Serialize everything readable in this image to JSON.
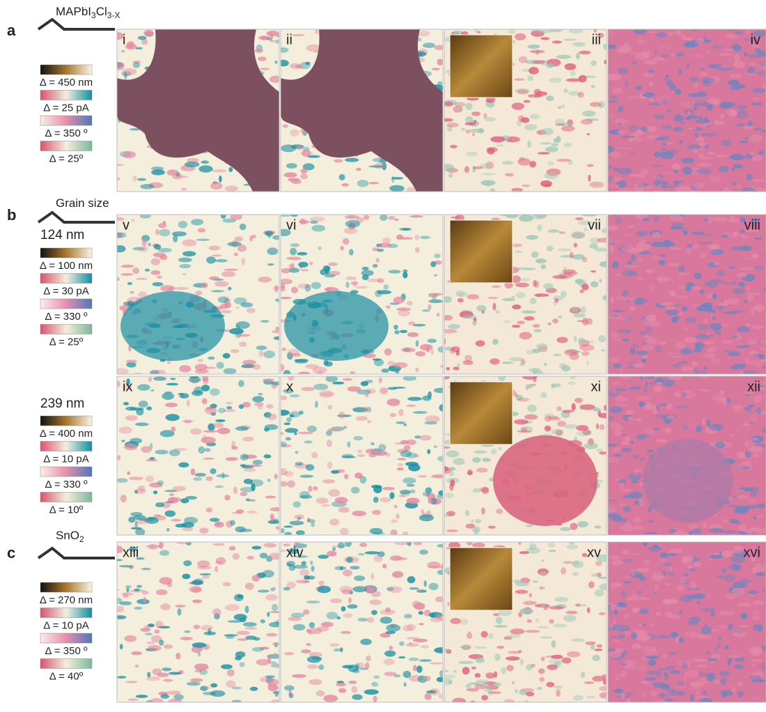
{
  "sections": [
    {
      "letter": "a",
      "title": [
        {
          "text": "MAPbI"
        },
        {
          "text": "3",
          "sub": true
        },
        {
          "text": "Cl"
        },
        {
          "text": "3-X",
          "sub": true
        }
      ],
      "rows": [
        {
          "scale_bars": [
            "Δ = 450 nm",
            "Δ = 25 pA",
            "Δ = 350 º",
            "Δ = 25º"
          ],
          "panels": [
            "i",
            "ii",
            "iii",
            "iv"
          ]
        }
      ]
    },
    {
      "letter": "b",
      "title": [
        {
          "text": "Grain size"
        }
      ],
      "rows": [
        {
          "grain_size": "124 nm",
          "scale_bars": [
            "Δ = 100 nm",
            "Δ = 30 pA",
            "Δ = 330 º",
            "Δ = 25º"
          ],
          "panels": [
            "v",
            "vi",
            "vii",
            "viii"
          ]
        },
        {
          "grain_size": "239 nm",
          "scale_bars": [
            "Δ = 400 nm",
            "Δ = 10 pA",
            "Δ = 330 º",
            "Δ = 10º"
          ],
          "panels": [
            "ix",
            "x",
            "xi",
            "xii"
          ]
        }
      ]
    },
    {
      "letter": "c",
      "title": [
        {
          "text": "SnO"
        },
        {
          "text": "2",
          "sub": true
        }
      ],
      "rows": [
        {
          "scale_bars": [
            "Δ = 270 nm",
            "Δ = 10 pA",
            "Δ = 350 º",
            "Δ = 40º"
          ],
          "panels": [
            "xiii",
            "xiv",
            "xv",
            "xvi"
          ]
        }
      ]
    }
  ]
}
